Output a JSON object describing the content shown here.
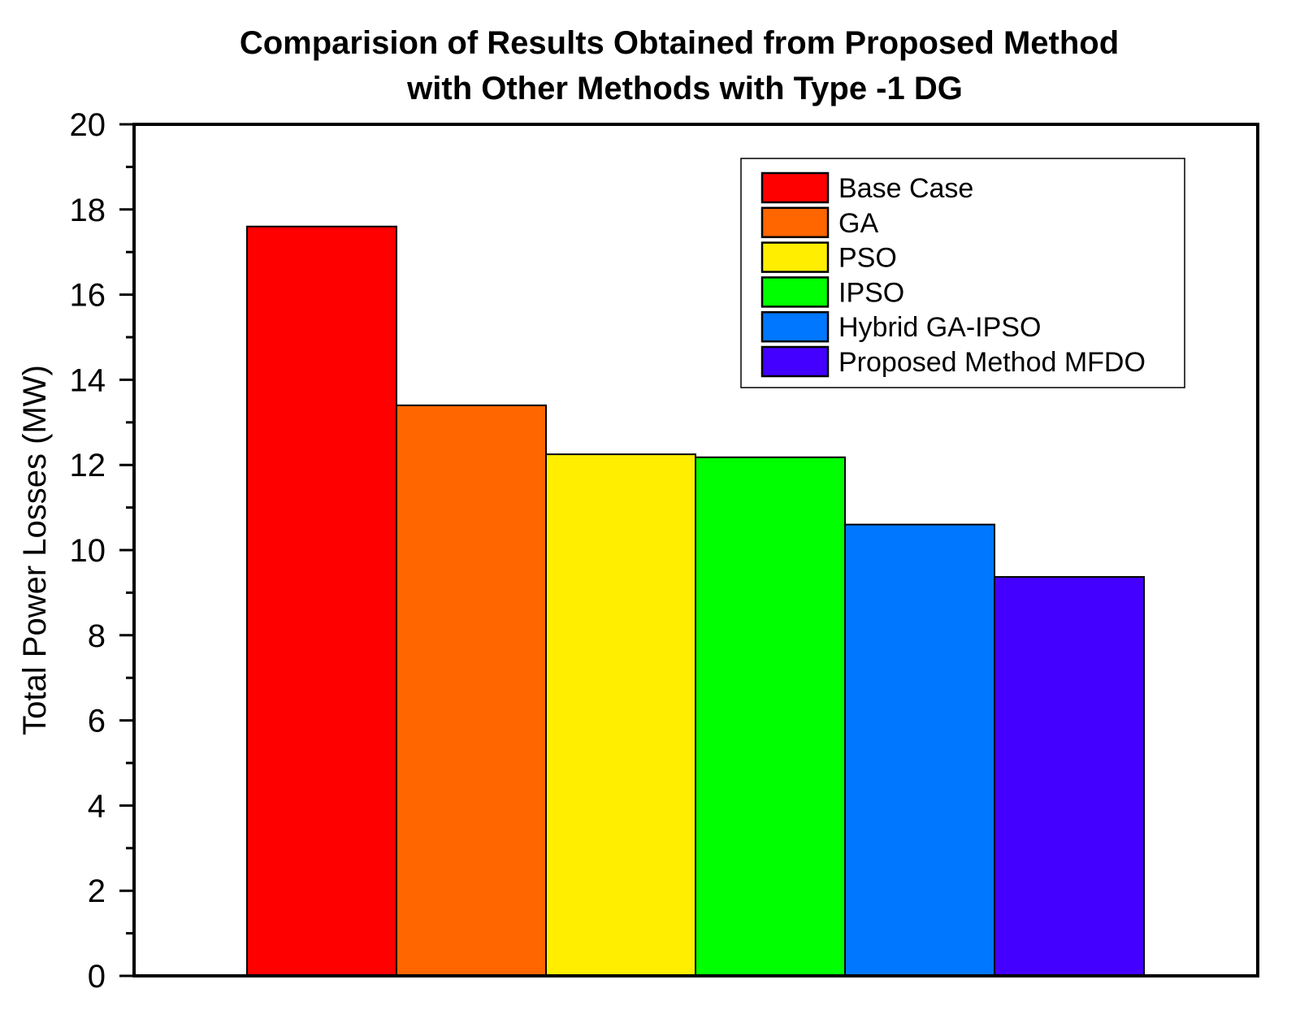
{
  "chart_data": {
    "type": "bar",
    "title": [
      "Comparision of Results Obtained from Proposed Method",
      "with Other Methods with Type -1 DG"
    ],
    "xlabel": "",
    "ylabel": "Total Power Losses (MW)",
    "ylim": [
      0,
      20
    ],
    "yticks": [
      "0",
      "2",
      "4",
      "6",
      "8",
      "10",
      "12",
      "14",
      "16",
      "18",
      "20"
    ],
    "grid": false,
    "legend_position": "top-right",
    "series": [
      {
        "name": "Base Case",
        "value": 17.6,
        "color": "#ff0000"
      },
      {
        "name": "GA",
        "value": 13.4,
        "color": "#ff6600"
      },
      {
        "name": "PSO",
        "value": 12.25,
        "color": "#ffee00"
      },
      {
        "name": "IPSO",
        "value": 12.18,
        "color": "#00ff00"
      },
      {
        "name": "Hybrid GA-IPSO",
        "value": 10.6,
        "color": "#0077ff"
      },
      {
        "name": "Proposed Method MFDO",
        "value": 9.37,
        "color": "#4400ff"
      }
    ]
  }
}
